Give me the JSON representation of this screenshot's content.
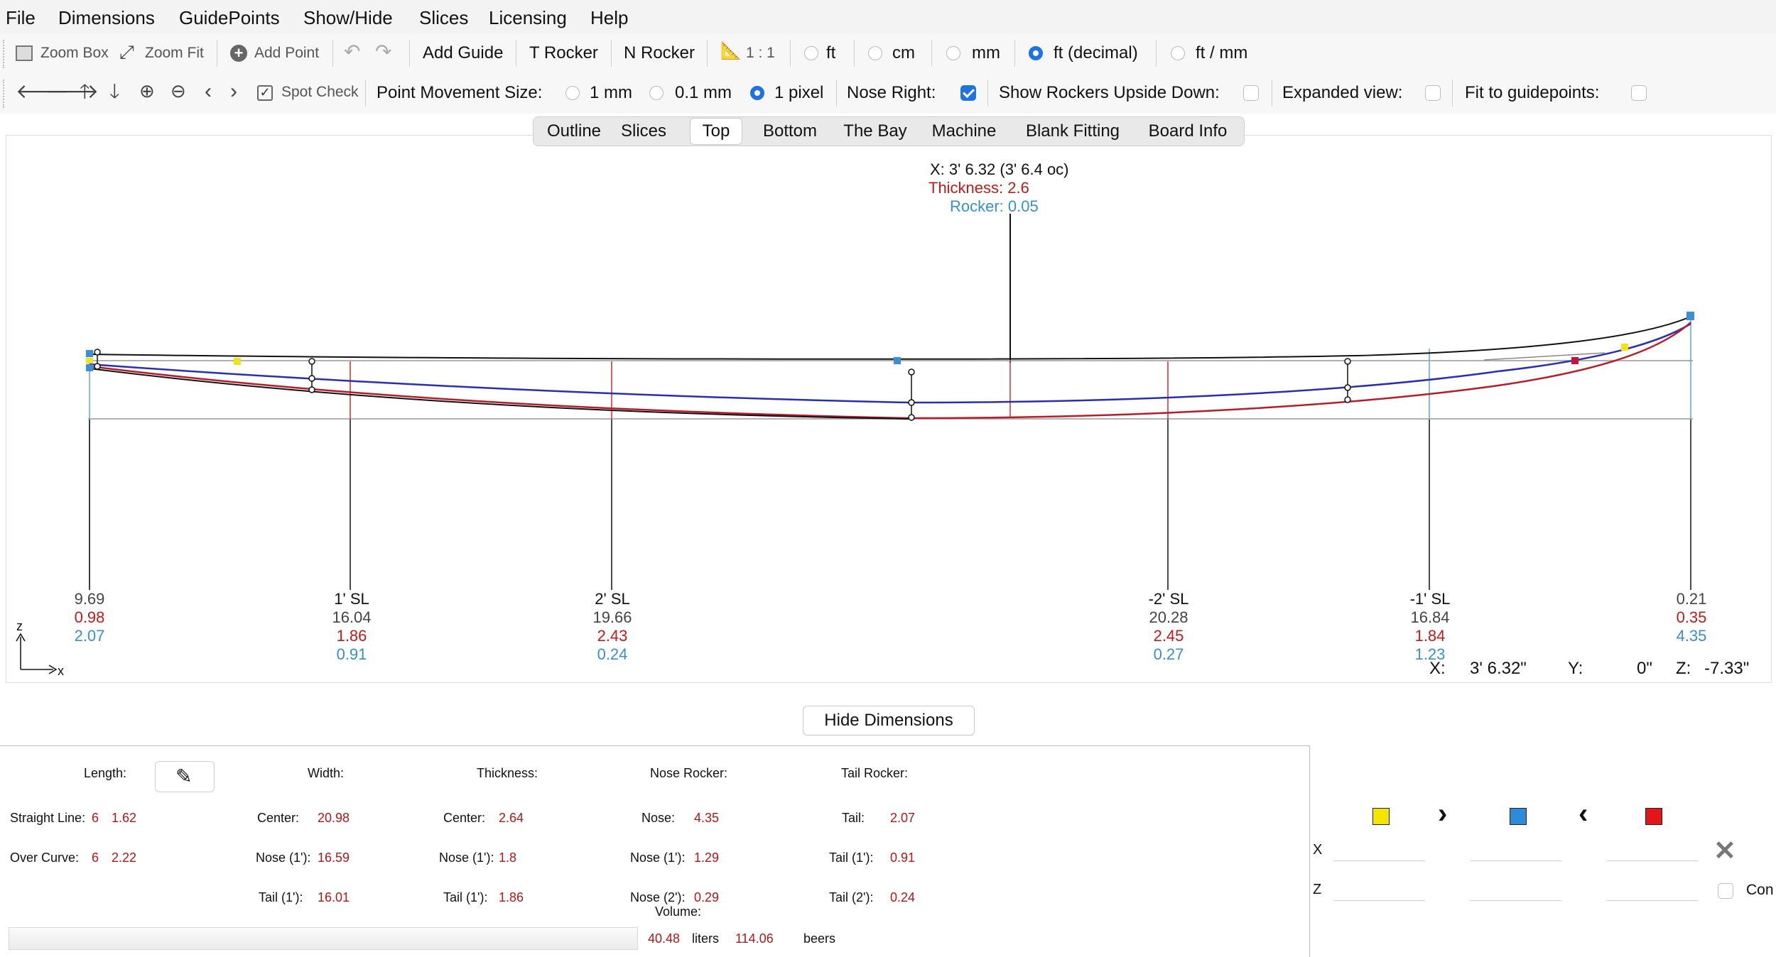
{
  "menu": [
    "File",
    "Dimensions",
    "GuidePoints",
    "Show/Hide",
    "Slices",
    "Licensing",
    "Help"
  ],
  "toolbar1": {
    "zoom_box": "Zoom Box",
    "zoom_fit": "Zoom Fit",
    "add_point": "Add Point",
    "add_guide": "Add Guide",
    "t_rocker": "T Rocker",
    "n_rocker": "N Rocker",
    "scale": "1 : 1",
    "units": [
      {
        "label": "ft",
        "selected": false
      },
      {
        "label": "cm",
        "selected": false
      },
      {
        "label": "mm",
        "selected": false
      },
      {
        "label": "ft (decimal)",
        "selected": true
      },
      {
        "label": "ft / mm",
        "selected": false
      }
    ]
  },
  "toolbar2": {
    "spot_check": "Spot Check",
    "point_movement_label": "Point Movement Size:",
    "movement_options": [
      {
        "label": "1 mm",
        "selected": false
      },
      {
        "label": "0.1 mm",
        "selected": false
      },
      {
        "label": "1 pixel",
        "selected": true
      }
    ],
    "nose_right_label": "Nose Right:",
    "nose_right": true,
    "show_rockers_label": "Show Rockers Upside Down:",
    "show_rockers": false,
    "expanded_label": "Expanded view:",
    "expanded": false,
    "fit_label": "Fit to guidepoints:",
    "fit": false
  },
  "tabs": [
    {
      "label": "Outline",
      "active": false
    },
    {
      "label": "Slices",
      "active": false
    },
    {
      "label": "Top",
      "active": true
    },
    {
      "label": "Bottom",
      "active": false
    },
    {
      "label": "The Bay",
      "active": false
    },
    {
      "label": "Machine",
      "active": false
    },
    {
      "label": "Blank Fitting",
      "active": false
    },
    {
      "label": "Board Info",
      "active": false
    }
  ],
  "canvas": {
    "cursor_x": "X: 3' 6.32 (3' 6.4 oc)",
    "cursor_thickness": "Thickness: 2.6",
    "cursor_rocker": "Rocker: 0.05",
    "stations": [
      {
        "name": "",
        "width": "9.69",
        "thickness": "0.98",
        "rocker": "2.07"
      },
      {
        "name": "1' SL",
        "width": "16.04",
        "thickness": "1.86",
        "rocker": "0.91"
      },
      {
        "name": "2' SL",
        "width": "19.66",
        "thickness": "2.43",
        "rocker": "0.24"
      },
      {
        "name": "-2' SL",
        "width": "20.28",
        "thickness": "2.45",
        "rocker": "0.27"
      },
      {
        "name": "-1' SL",
        "width": "16.84",
        "thickness": "1.84",
        "rocker": "1.23"
      },
      {
        "name": "",
        "width": "0.21",
        "thickness": "0.35",
        "rocker": "4.35"
      }
    ],
    "axis_z": "z",
    "axis_x": "x",
    "coords": {
      "x_label": "X:",
      "x": "3' 6.32\"",
      "y_label": "Y:",
      "y": "0\"",
      "z_label": "Z:",
      "z": "-7.33\""
    },
    "colors": {
      "outline": "#111111",
      "deck": "#2a2fb0",
      "bottom": "#b81c2a",
      "station_red": "#d22b2b",
      "station_blue": "#5aa6dc"
    }
  },
  "hide_dimensions": "Hide Dimensions",
  "dimensions": {
    "length_label": "Length:",
    "straight_line_label": "Straight Line:",
    "straight_line_ft": "6",
    "straight_line_in": "1.62",
    "over_curve_label": "Over Curve:",
    "over_curve_ft": "6",
    "over_curve_in": "2.22",
    "width_label": "Width:",
    "width_center_label": "Center:",
    "width_center": "20.98",
    "width_nose_label": "Nose (1'):",
    "width_nose": "16.59",
    "width_tail_label": "Tail (1'):",
    "width_tail": "16.01",
    "thickness_label": "Thickness:",
    "thick_center_label": "Center:",
    "thick_center": "2.64",
    "thick_nose_label": "Nose (1'):",
    "thick_nose": "1.8",
    "thick_tail_label": "Tail (1'):",
    "thick_tail": "1.86",
    "nose_rocker_label": "Nose Rocker:",
    "nr_nose_label": "Nose:",
    "nr_nose": "4.35",
    "nr_nose1_label": "Nose (1'):",
    "nr_nose1": "1.29",
    "nr_nose2_label": "Nose (2'):",
    "nr_nose2": "0.29",
    "tail_rocker_label": "Tail Rocker:",
    "tr_tail_label": "Tail:",
    "tr_tail": "2.07",
    "tr_tail1_label": "Tail (1'):",
    "tr_tail1": "0.91",
    "tr_tail2_label": "Tail (2'):",
    "tr_tail2": "0.24",
    "volume_label": "Volume:",
    "volume_liters": "40.48",
    "liters_label": "liters",
    "volume_beers": "114.06",
    "beers_label": "beers"
  },
  "right_panel": {
    "x_label": "X",
    "z_label": "Z",
    "con_label": "Con"
  }
}
